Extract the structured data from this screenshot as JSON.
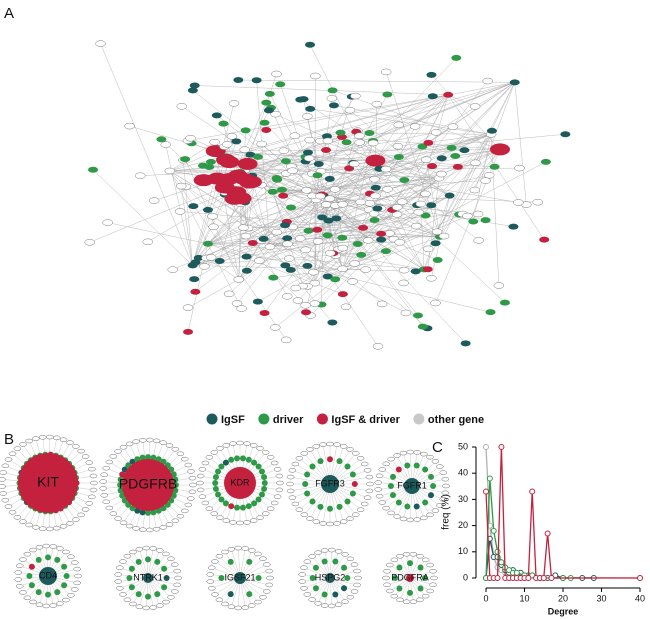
{
  "panels": {
    "a": "A",
    "b": "B",
    "c": "C"
  },
  "legend": [
    {
      "name": "IgSF",
      "color": "#1d5a5c"
    },
    {
      "name": "driver",
      "color": "#2e9a48"
    },
    {
      "name": "IgSF & driver",
      "color": "#c4213f"
    },
    {
      "name": "other gene",
      "color": "#c8c8c8"
    }
  ],
  "subnetworks": [
    {
      "label": "KIT",
      "color": "#c4213f"
    },
    {
      "label": "PDGFRB",
      "color": "#c4213f"
    },
    {
      "label": "KDR",
      "color": "#c4213f"
    },
    {
      "label": "FGFR3",
      "color": "#1d5a5c"
    },
    {
      "label": "FGFR1",
      "color": "#1d5a5c"
    },
    {
      "label": "CD4",
      "color": "#1d5a5c"
    },
    {
      "label": "NTRK1",
      "color": "#1d5a5c"
    },
    {
      "label": "IGSF21",
      "color": "#1d5a5c"
    },
    {
      "label": "HSPG2",
      "color": "#1d5a5c"
    },
    {
      "label": "PDGFRA",
      "color": "#c4213f"
    }
  ],
  "chart_data": {
    "type": "line",
    "x_label": "Degree",
    "y_label": "freq (%)",
    "xlim": [
      0,
      40
    ],
    "ylim": [
      0,
      50
    ],
    "xticks": [
      0,
      10,
      20,
      30,
      40
    ],
    "yticks": [
      0,
      10,
      20,
      30,
      40,
      50
    ],
    "series": [
      {
        "color": "#b0b0b0",
        "x": [
          0,
          1,
          2,
          3,
          4,
          5,
          6,
          7,
          8,
          9,
          10,
          40
        ],
        "values": [
          50,
          20,
          8,
          4,
          3,
          2,
          1,
          1,
          0.5,
          0.5,
          0.3,
          0
        ]
      },
      {
        "color": "#1d5a5c",
        "x": [
          0,
          1,
          2,
          3,
          4,
          5,
          6,
          7,
          8,
          9,
          10,
          11,
          12,
          14,
          16,
          18,
          20,
          25,
          28
        ],
        "values": [
          0,
          15,
          8,
          8,
          5,
          3,
          2,
          3,
          1,
          2,
          1,
          1,
          1,
          0,
          0,
          1,
          0,
          0,
          0
        ]
      },
      {
        "color": "#2e9a48",
        "x": [
          0,
          1,
          2,
          3,
          4,
          5,
          6,
          7,
          8,
          10,
          12,
          15,
          20,
          22
        ],
        "values": [
          0,
          38,
          18,
          10,
          6,
          4,
          3,
          2,
          2,
          1,
          1,
          0,
          0,
          0
        ]
      },
      {
        "color": "#c4213f",
        "x": [
          0,
          1,
          2,
          3,
          4,
          5,
          6,
          7,
          8,
          9,
          10,
          11,
          12,
          13,
          14,
          15,
          16,
          17,
          40
        ],
        "values": [
          33,
          0,
          0,
          0,
          50,
          0,
          0,
          0,
          0,
          0,
          0,
          0,
          33,
          0,
          0,
          0,
          17,
          0,
          0
        ]
      }
    ]
  }
}
